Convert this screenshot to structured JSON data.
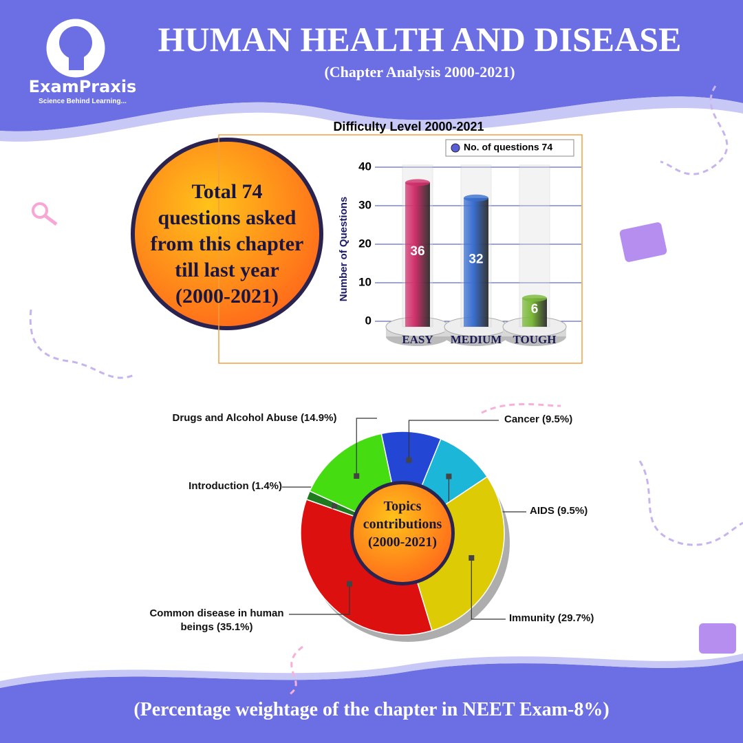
{
  "header": {
    "brand": "ExamPraxis",
    "tagline": "Science Behind Learning...",
    "title": "HUMAN HEALTH AND DISEASE",
    "subtitle": "(Chapter Analysis 2000-2021)"
  },
  "callout": {
    "lines": [
      "Total 74",
      "questions asked",
      "from this chapter",
      "till last year",
      "(2000-2021)"
    ]
  },
  "footer": {
    "text": "(Percentage weightage of the chapter in NEET Exam-8%)"
  },
  "chart_data": [
    {
      "type": "bar",
      "title": "Difficulty Level 2000-2021",
      "y_label": "Number of Questions",
      "categories": [
        "EASY",
        "MEDIUM",
        "TOUGH"
      ],
      "series": [
        {
          "name": "No. of questions 74",
          "color": "#5b5fd6",
          "values": [
            36,
            32,
            6
          ],
          "colors": [
            "#d0306a",
            "#3a6fd0",
            "#7ab838"
          ]
        }
      ],
      "ylim": [
        0,
        40
      ],
      "yticks": [
        0,
        10,
        20,
        30,
        40
      ],
      "grid": true,
      "legend": "top-right"
    },
    {
      "type": "pie",
      "center_label": "Topics contributions (2000-2021)",
      "categories": [
        "Cancer",
        "AIDS",
        "Immunity",
        "Common disease in human beings",
        "Introduction",
        "Drugs and Alcohol Abuse"
      ],
      "values": [
        9.5,
        9.5,
        29.7,
        35.1,
        1.4,
        14.9
      ],
      "value_labels": [
        "(9.5%)",
        "(9.5%)",
        "(29.7%)",
        "(35.1%)",
        "(1.4%)",
        "(14.9%)"
      ],
      "colors": [
        "#2446d4",
        "#1bb6d8",
        "#dccb05",
        "#dd1010",
        "#1f7a1f",
        "#45dc12"
      ]
    }
  ]
}
